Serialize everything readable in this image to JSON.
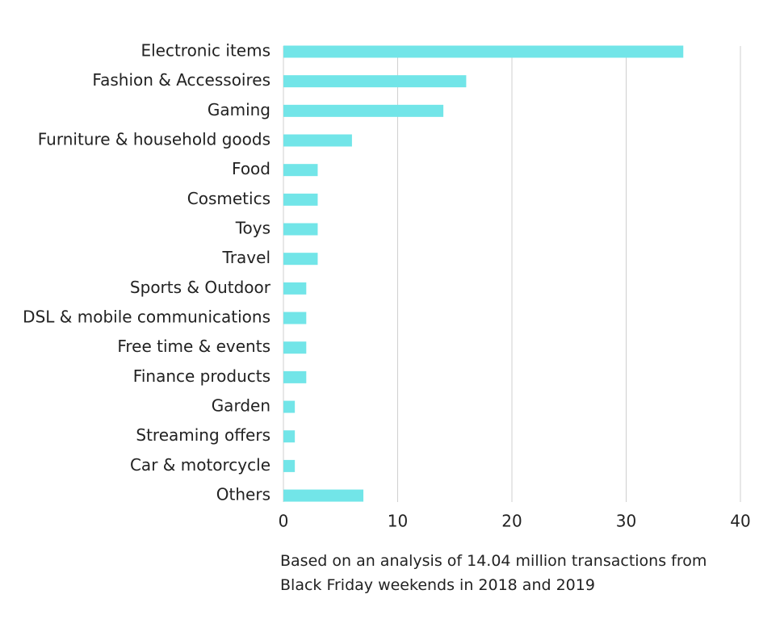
{
  "chart_data": {
    "type": "hbar",
    "categories": [
      "Electronic items",
      "Fashion & Accessoires",
      "Gaming",
      "Furniture & household goods",
      "Food",
      "Cosmetics",
      "Toys",
      "Travel",
      "Sports & Outdoor",
      "DSL & mobile communications",
      "Free time & events",
      "Finance products",
      "Garden",
      "Streaming offers",
      "Car & motorcycle",
      "Others"
    ],
    "values": [
      35,
      16,
      14,
      6,
      3,
      3,
      3,
      3,
      2,
      2,
      2,
      2,
      1,
      1,
      1,
      7
    ],
    "color": "#72e5e8",
    "xlim": [
      0,
      40
    ],
    "xticks": [
      0,
      10,
      20,
      30,
      40
    ],
    "grid": true,
    "caption": "Based on an analysis of 14.04 million transactions from Black Friday weekends in 2018 and 2019"
  }
}
